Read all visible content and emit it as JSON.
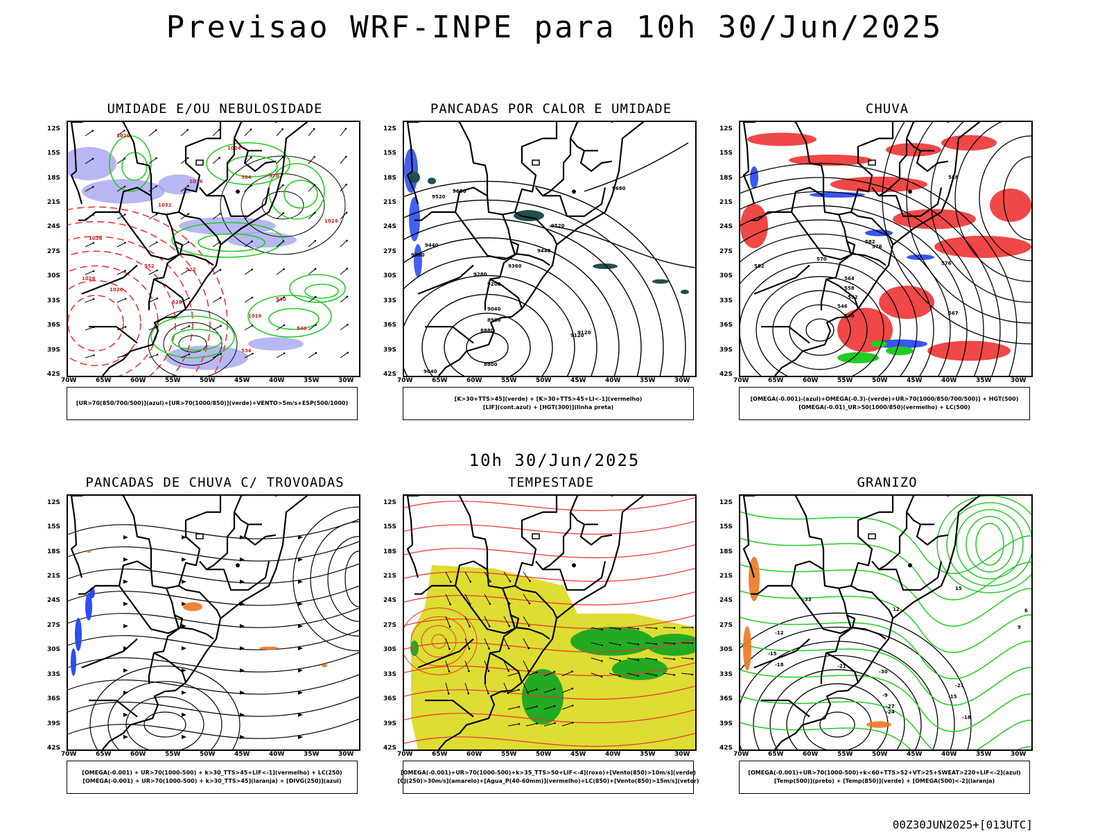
{
  "header": {
    "title": "Previsao WRF-INPE  para 10h 30/Jun/2025",
    "middle_date": "10h 30/Jun/2025",
    "run_stamp": "00Z30JUN2025+[013UTC]"
  },
  "axes": {
    "lat_labels": [
      "12S",
      "15S",
      "18S",
      "21S",
      "24S",
      "27S",
      "30S",
      "33S",
      "36S",
      "39S",
      "42S"
    ],
    "lon_labels": [
      "70W",
      "65W",
      "60W",
      "55W",
      "50W",
      "45W",
      "40W",
      "35W",
      "30W"
    ]
  },
  "panels": [
    {
      "title": "UMIDADE E/OU NEBULOSIDADE",
      "legend": [
        "[UR>70(850/700/500)](azul)+[UR>70(1000/850)](verde)+VENTO>5m/s+ESP(500/1000)"
      ],
      "labels": [
        "1020",
        "1024",
        "1016",
        "1032",
        "1036",
        "1028",
        "1020",
        "540",
        "546",
        "552",
        "570",
        "564",
        "528",
        "522",
        "534",
        "1016",
        "1024"
      ]
    },
    {
      "title": "PANCADAS POR CALOR E UMIDADE",
      "legend": [
        "[K>30+TTS>45](verde) + [K>30+TTS>45+LI<-1](vermelho)",
        "[LIF](cont.azul) + [HGT(300)](linha preta)"
      ],
      "labels": [
        "9600",
        "9520",
        "9440",
        "9360",
        "9280",
        "9200",
        "9120",
        "9040",
        "8960",
        "8880",
        "8800",
        "9680",
        "9600",
        "9520",
        "9440",
        "9360",
        "9040",
        "9120"
      ]
    },
    {
      "title": "CHUVA",
      "legend": [
        "[OMEGA(-0.001)-(azul)+OMEGA(-0.3)-(verde)+UR>70(1000/850/700/500)] + HGT(500)",
        "[OMEGA(-0.01)_UR>50(1000/850)(vermelho) + LC(500)"
      ],
      "labels": [
        "588",
        "582",
        "576",
        "570",
        "564",
        "558",
        "552",
        "546",
        "540",
        "576",
        "582",
        "567"
      ]
    },
    {
      "title": "PANCADAS DE CHUVA C/ TROVOADAS",
      "legend": [
        "[OMEGA(-0.001) + UR>70(1000-500) + k>30_TTS>45+LIF<-1](vermelho) + LC(250)",
        "[OMEGA(-0.001) + UR>70(1000-500) + k>30_TTS>45](laranja) + [DIVG(250)](azul)"
      ],
      "labels": []
    },
    {
      "title": "TEMPESTADE",
      "legend": [
        "[OMEGA(-0.001)+UR>70(1000-500)+k>35_TTS>50+LIF<-4](roxo)+[Vento(850)>10m/s](verde)",
        "[CJ(250)>30m/s](amarelo)+[Agua_P(40-60mm)](vermelho)+LC(850)+[Vento(850)>15m/s](vetor)"
      ],
      "labels": []
    },
    {
      "title": "GRANIZO",
      "legend": [
        "[OMEGA(-0.001)+UR>70(1000-500)+k<60+TTS>52+VT>25+SWEAT>220+LIF<-2](azul)",
        "[Temp(500)](preto) + [Temp(850)](verde) + [OMEGA(500)<-2](laranja)"
      ],
      "labels": [
        "-12",
        "-15",
        "-18",
        "-21",
        "-24",
        "-27",
        "-30",
        "-33",
        "-15",
        "-18",
        "-21",
        "-9",
        "12",
        "15",
        "6",
        "9"
      ]
    }
  ],
  "colors": {
    "blue_shade": "#9999ee",
    "green_contour": "#22cc22",
    "red_contour": "#ee3333",
    "yellow_shade": "#dddd33",
    "dark_green_shade": "#22aa22",
    "orange": "#ee7722",
    "blue_dots": "#2244ee",
    "teal": "#1f4f4f"
  }
}
